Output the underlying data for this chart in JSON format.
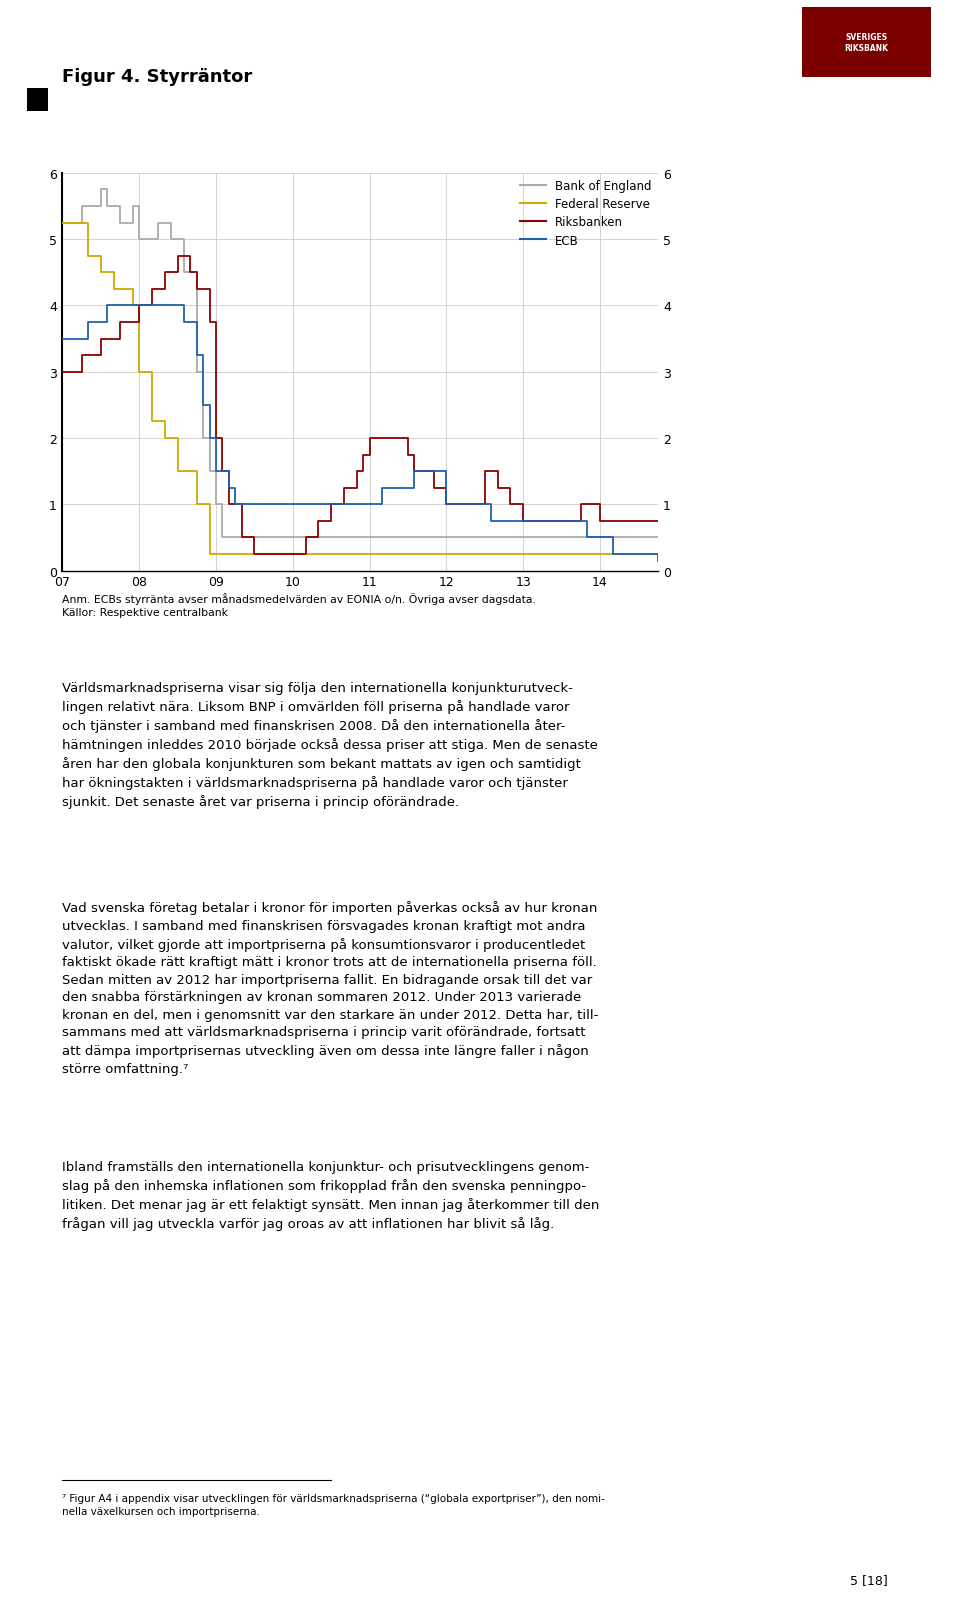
{
  "title": "Figur 4. Styrräntor",
  "background_color": "#ffffff",
  "grid_color": "#cccccc",
  "ylim": [
    0,
    6
  ],
  "xlim": [
    2007.0,
    2014.75
  ],
  "yticks": [
    0,
    1,
    2,
    3,
    4,
    5,
    6
  ],
  "xtick_labels": [
    "07",
    "08",
    "09",
    "10",
    "11",
    "12",
    "13",
    "14"
  ],
  "xtick_positions": [
    2007,
    2008,
    2009,
    2010,
    2011,
    2012,
    2013,
    2014
  ],
  "legend_entries": [
    "Bank of England",
    "Federal Reserve",
    "Riksbanken",
    "ECB"
  ],
  "colors": {
    "bank_of_england": "#aaaaaa",
    "federal_reserve": "#ccaa00",
    "riksbanken": "#8b0000",
    "ecb": "#2060b0"
  },
  "bank_of_england": {
    "dates": [
      2007.0,
      2007.25,
      2007.5,
      2007.583,
      2007.75,
      2007.917,
      2008.0,
      2008.25,
      2008.42,
      2008.583,
      2008.75,
      2008.833,
      2008.917,
      2009.0,
      2009.083,
      2009.167,
      2009.25,
      2014.75
    ],
    "rates": [
      5.25,
      5.5,
      5.75,
      5.5,
      5.25,
      5.5,
      5.0,
      5.25,
      5.0,
      4.5,
      3.0,
      2.0,
      1.5,
      1.0,
      0.5,
      0.5,
      0.5,
      0.5
    ]
  },
  "federal_reserve": {
    "dates": [
      2007.0,
      2007.167,
      2007.333,
      2007.5,
      2007.667,
      2007.833,
      2007.917,
      2008.0,
      2008.167,
      2008.333,
      2008.5,
      2008.75,
      2008.917,
      2009.0,
      2014.75
    ],
    "rates": [
      5.25,
      5.25,
      4.75,
      4.5,
      4.25,
      4.25,
      4.0,
      3.0,
      2.25,
      2.0,
      1.5,
      1.0,
      0.25,
      0.25,
      0.25
    ]
  },
  "riksbanken": {
    "dates": [
      2007.0,
      2007.25,
      2007.5,
      2007.75,
      2008.0,
      2008.167,
      2008.333,
      2008.5,
      2008.667,
      2008.75,
      2008.917,
      2009.0,
      2009.083,
      2009.167,
      2009.333,
      2009.5,
      2009.583,
      2009.667,
      2010.0,
      2010.167,
      2010.333,
      2010.5,
      2010.667,
      2010.833,
      2010.917,
      2011.0,
      2011.25,
      2011.5,
      2011.583,
      2011.75,
      2011.833,
      2012.0,
      2012.5,
      2012.667,
      2012.833,
      2013.0,
      2013.167,
      2013.583,
      2013.75,
      2014.0,
      2014.75
    ],
    "rates": [
      3.0,
      3.25,
      3.5,
      3.75,
      4.0,
      4.25,
      4.5,
      4.75,
      4.5,
      4.25,
      3.75,
      2.0,
      1.5,
      1.0,
      0.5,
      0.25,
      0.25,
      0.25,
      0.25,
      0.5,
      0.75,
      1.0,
      1.25,
      1.5,
      1.75,
      2.0,
      2.0,
      1.75,
      1.5,
      1.5,
      1.25,
      1.0,
      1.5,
      1.25,
      1.0,
      0.75,
      0.75,
      0.75,
      1.0,
      0.75,
      0.75
    ]
  },
  "ecb": {
    "dates": [
      2007.0,
      2007.333,
      2007.583,
      2008.417,
      2008.583,
      2008.75,
      2008.833,
      2008.917,
      2009.0,
      2009.167,
      2009.25,
      2009.333,
      2009.417,
      2010.25,
      2010.583,
      2011.0,
      2011.167,
      2011.417,
      2011.583,
      2011.667,
      2011.833,
      2012.0,
      2012.583,
      2013.25,
      2013.833,
      2014.167,
      2014.75
    ],
    "rates": [
      3.5,
      3.75,
      4.0,
      4.0,
      3.75,
      3.25,
      2.5,
      2.0,
      1.5,
      1.25,
      1.0,
      1.0,
      1.0,
      1.0,
      1.0,
      1.0,
      1.25,
      1.25,
      1.5,
      1.5,
      1.5,
      1.0,
      0.75,
      0.75,
      0.5,
      0.25,
      0.15
    ]
  },
  "note_line1": "Anm. ECBs styrränta avser månadsmedelvärden av EONIA o/n. Övriga avser dagsdata.",
  "note_line2": "Källor: Respektive centralbank",
  "body_text1": "Världsmarknadspriserna visar sig följa den internationella konjunkturutveck-\nlingen relativt nära. Liksom BNP i omvärlden föll priserna på handlade varor\noch tjänster i samband med finanskrisen 2008. Då den internationella åter-\nhämtningen inleddes 2010 började också dessa priser att stiga. Men de senaste\nåren har den globala konjunkturen som bekant mattats av igen och samtidigt\nhar ökningstakten i världsmarknadspriserna på handlade varor och tjänster\nsjunkit. Det senaste året var priserna i princip oförändrade.",
  "body_text2": "Vad svenska företag betalar i kronor för importen påverkas också av hur kronan\nutvecklas. I samband med finanskrisen försvagades kronan kraftigt mot andra\nvalutor, vilket gjorde att importpriserna på konsumtionsvaror i producentledet\nfaktiskt ökade rätt kraftigt mätt i kronor trots att de internationella priserna föll.\nSedan mitten av 2012 har importpriserna fallit. En bidragande orsak till det var\nden snabba förstärkningen av kronan sommaren 2012. Under 2013 varierade\nkronan en del, men i genomsnitt var den starkare än under 2012. Detta har, till-\nsammans med att världsmarknadspriserna i princip varit oförändrade, fortsatt\natt dämpa importprisernas utveckling även om dessa inte längre faller i någon\nstörre omfattning.⁷",
  "body_text3": "Ibland framställs den internationella konjunktur- och prisutvecklingens genom-\nslag på den inhemska inflationen som frikopplad från den svenska penningpo-\nlitiken. Det menar jag är ett felaktigt synsätt. Men innan jag återkommer till den\nfrågan vill jag utveckla varför jag oroas av att inflationen har blivit så låg.",
  "footnote": "⁷ Figur A4 i appendix visar utvecklingen för världsmarknadspriserna (“globala exportpriser”), den nomi-\nnella växelkursen och importpriserna.",
  "page_text": "5 [18]"
}
